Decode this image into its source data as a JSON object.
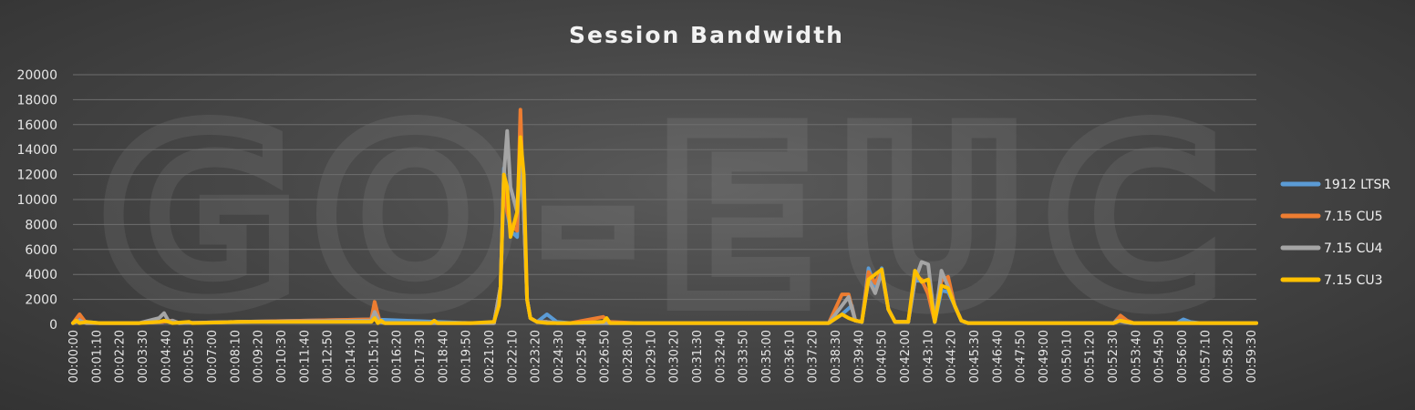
{
  "chart_data": {
    "type": "line",
    "title": "Session Bandwidth",
    "xlabel": "",
    "ylabel": "",
    "ylim": [
      0,
      20000
    ],
    "y_ticks": [
      0,
      2000,
      4000,
      6000,
      8000,
      10000,
      12000,
      14000,
      16000,
      18000,
      20000
    ],
    "x_tick_labels": [
      "00:00:00",
      "00:01:10",
      "00:02:20",
      "00:03:30",
      "00:04:40",
      "00:05:50",
      "00:07:00",
      "00:08:10",
      "00:09:20",
      "00:10:30",
      "00:11:40",
      "00:12:50",
      "00:14:00",
      "00:15:10",
      "00:16:20",
      "00:17:30",
      "00:18:40",
      "00:19:50",
      "00:21:00",
      "00:22:10",
      "00:23:20",
      "00:24:30",
      "00:25:40",
      "00:26:50",
      "00:28:00",
      "00:29:10",
      "00:30:20",
      "00:31:30",
      "00:32:40",
      "00:33:50",
      "00:35:00",
      "00:36:10",
      "00:37:20",
      "00:38:30",
      "00:39:40",
      "00:40:50",
      "00:42:00",
      "00:43:10",
      "00:44:20",
      "00:45:30",
      "00:46:40",
      "00:47:50",
      "00:49:00",
      "00:50:10",
      "00:51:20",
      "00:52:30",
      "00:53:40",
      "00:54:50",
      "00:56:00",
      "00:57:10",
      "00:58:20",
      "00:59:30"
    ],
    "x_range_seconds": [
      0,
      3570
    ],
    "grid": true,
    "legend_position": "right",
    "watermark": "GO-EUC",
    "series": [
      {
        "name": "1912 LTSR",
        "color": "#5b9bd5",
        "points": [
          [
            0,
            100
          ],
          [
            20,
            400
          ],
          [
            40,
            200
          ],
          [
            80,
            100
          ],
          [
            200,
            100
          ],
          [
            270,
            200
          ],
          [
            300,
            300
          ],
          [
            320,
            100
          ],
          [
            500,
            200
          ],
          [
            900,
            400
          ],
          [
            1200,
            100
          ],
          [
            1270,
            100
          ],
          [
            1290,
            3000
          ],
          [
            1300,
            12500
          ],
          [
            1310,
            9000
          ],
          [
            1320,
            7500
          ],
          [
            1340,
            7000
          ],
          [
            1350,
            14000
          ],
          [
            1360,
            9000
          ],
          [
            1370,
            2000
          ],
          [
            1380,
            500
          ],
          [
            1400,
            200
          ],
          [
            1430,
            800
          ],
          [
            1460,
            200
          ],
          [
            1500,
            100
          ],
          [
            1700,
            100
          ],
          [
            2280,
            100
          ],
          [
            2320,
            800
          ],
          [
            2350,
            1500
          ],
          [
            2360,
            300
          ],
          [
            2380,
            200
          ],
          [
            2400,
            4500
          ],
          [
            2420,
            3000
          ],
          [
            2440,
            4500
          ],
          [
            2460,
            1200
          ],
          [
            2480,
            200
          ],
          [
            2520,
            200
          ],
          [
            2540,
            3500
          ],
          [
            2560,
            3500
          ],
          [
            2580,
            2500
          ],
          [
            2600,
            200
          ],
          [
            2620,
            2700
          ],
          [
            2640,
            2600
          ],
          [
            2660,
            1500
          ],
          [
            2680,
            300
          ],
          [
            2700,
            100
          ],
          [
            3140,
            100
          ],
          [
            3150,
            400
          ],
          [
            3170,
            300
          ],
          [
            3190,
            100
          ],
          [
            3330,
            100
          ],
          [
            3350,
            400
          ],
          [
            3370,
            200
          ],
          [
            3400,
            100
          ],
          [
            3570,
            100
          ]
        ]
      },
      {
        "name": "7.15 CU5",
        "color": "#ed7d31",
        "points": [
          [
            0,
            100
          ],
          [
            20,
            800
          ],
          [
            40,
            100
          ],
          [
            80,
            100
          ],
          [
            200,
            100
          ],
          [
            270,
            200
          ],
          [
            300,
            300
          ],
          [
            320,
            100
          ],
          [
            500,
            200
          ],
          [
            900,
            400
          ],
          [
            910,
            1800
          ],
          [
            925,
            300
          ],
          [
            940,
            100
          ],
          [
            1200,
            100
          ],
          [
            1270,
            100
          ],
          [
            1290,
            3000
          ],
          [
            1300,
            12000
          ],
          [
            1310,
            9000
          ],
          [
            1320,
            8000
          ],
          [
            1340,
            7500
          ],
          [
            1350,
            17200
          ],
          [
            1360,
            9000
          ],
          [
            1370,
            2000
          ],
          [
            1380,
            500
          ],
          [
            1400,
            200
          ],
          [
            1430,
            200
          ],
          [
            1460,
            100
          ],
          [
            1500,
            100
          ],
          [
            1600,
            600
          ],
          [
            1620,
            200
          ],
          [
            1700,
            100
          ],
          [
            2280,
            100
          ],
          [
            2320,
            2400
          ],
          [
            2340,
            2400
          ],
          [
            2360,
            300
          ],
          [
            2380,
            200
          ],
          [
            2400,
            4200
          ],
          [
            2420,
            3300
          ],
          [
            2440,
            4300
          ],
          [
            2460,
            1200
          ],
          [
            2480,
            200
          ],
          [
            2520,
            200
          ],
          [
            2540,
            3800
          ],
          [
            2560,
            3600
          ],
          [
            2580,
            2400
          ],
          [
            2600,
            200
          ],
          [
            2620,
            3500
          ],
          [
            2640,
            3800
          ],
          [
            2660,
            1500
          ],
          [
            2680,
            300
          ],
          [
            2700,
            100
          ],
          [
            3140,
            100
          ],
          [
            3160,
            700
          ],
          [
            3180,
            300
          ],
          [
            3200,
            100
          ],
          [
            3570,
            100
          ]
        ]
      },
      {
        "name": "7.15 CU4",
        "color": "#a5a5a5",
        "points": [
          [
            0,
            100
          ],
          [
            20,
            300
          ],
          [
            40,
            100
          ],
          [
            80,
            100
          ],
          [
            200,
            100
          ],
          [
            260,
            500
          ],
          [
            275,
            900
          ],
          [
            290,
            200
          ],
          [
            300,
            300
          ],
          [
            320,
            100
          ],
          [
            500,
            200
          ],
          [
            900,
            300
          ],
          [
            910,
            1000
          ],
          [
            925,
            200
          ],
          [
            940,
            100
          ],
          [
            1200,
            100
          ],
          [
            1270,
            100
          ],
          [
            1290,
            3000
          ],
          [
            1300,
            12000
          ],
          [
            1310,
            15500
          ],
          [
            1320,
            11000
          ],
          [
            1340,
            9000
          ],
          [
            1350,
            13000
          ],
          [
            1360,
            9000
          ],
          [
            1370,
            2000
          ],
          [
            1380,
            500
          ],
          [
            1400,
            200
          ],
          [
            1430,
            200
          ],
          [
            1460,
            100
          ],
          [
            1500,
            100
          ],
          [
            1700,
            100
          ],
          [
            2280,
            100
          ],
          [
            2320,
            1500
          ],
          [
            2340,
            2200
          ],
          [
            2360,
            300
          ],
          [
            2380,
            200
          ],
          [
            2400,
            3600
          ],
          [
            2420,
            2500
          ],
          [
            2440,
            4200
          ],
          [
            2460,
            1200
          ],
          [
            2480,
            200
          ],
          [
            2520,
            200
          ],
          [
            2540,
            3500
          ],
          [
            2560,
            5000
          ],
          [
            2580,
            4800
          ],
          [
            2600,
            200
          ],
          [
            2620,
            4300
          ],
          [
            2640,
            3000
          ],
          [
            2660,
            1500
          ],
          [
            2680,
            300
          ],
          [
            2700,
            100
          ],
          [
            3140,
            100
          ],
          [
            3150,
            300
          ],
          [
            3170,
            200
          ],
          [
            3190,
            100
          ],
          [
            3570,
            100
          ]
        ]
      },
      {
        "name": "7.15 CU3",
        "color": "#ffc000",
        "points": [
          [
            0,
            100
          ],
          [
            10,
            300
          ],
          [
            20,
            100
          ],
          [
            40,
            200
          ],
          [
            80,
            100
          ],
          [
            200,
            100
          ],
          [
            260,
            200
          ],
          [
            275,
            300
          ],
          [
            290,
            200
          ],
          [
            300,
            100
          ],
          [
            350,
            200
          ],
          [
            360,
            100
          ],
          [
            500,
            200
          ],
          [
            900,
            200
          ],
          [
            910,
            500
          ],
          [
            920,
            100
          ],
          [
            930,
            300
          ],
          [
            940,
            100
          ],
          [
            1080,
            100
          ],
          [
            1090,
            300
          ],
          [
            1100,
            100
          ],
          [
            1200,
            100
          ],
          [
            1270,
            200
          ],
          [
            1285,
            1500
          ],
          [
            1290,
            3000
          ],
          [
            1300,
            12000
          ],
          [
            1310,
            11000
          ],
          [
            1320,
            7000
          ],
          [
            1340,
            9000
          ],
          [
            1350,
            15000
          ],
          [
            1360,
            12000
          ],
          [
            1370,
            2000
          ],
          [
            1380,
            500
          ],
          [
            1400,
            200
          ],
          [
            1430,
            100
          ],
          [
            1460,
            100
          ],
          [
            1500,
            100
          ],
          [
            1600,
            200
          ],
          [
            1610,
            500
          ],
          [
            1620,
            100
          ],
          [
            1700,
            100
          ],
          [
            2280,
            100
          ],
          [
            2320,
            800
          ],
          [
            2340,
            500
          ],
          [
            2360,
            300
          ],
          [
            2380,
            200
          ],
          [
            2400,
            3600
          ],
          [
            2420,
            4000
          ],
          [
            2440,
            4400
          ],
          [
            2460,
            1200
          ],
          [
            2480,
            200
          ],
          [
            2520,
            200
          ],
          [
            2540,
            4300
          ],
          [
            2560,
            3400
          ],
          [
            2580,
            3600
          ],
          [
            2600,
            200
          ],
          [
            2620,
            3100
          ],
          [
            2640,
            2900
          ],
          [
            2660,
            1500
          ],
          [
            2680,
            300
          ],
          [
            2700,
            100
          ],
          [
            3140,
            100
          ],
          [
            3160,
            300
          ],
          [
            3180,
            200
          ],
          [
            3200,
            100
          ],
          [
            3570,
            100
          ]
        ]
      }
    ]
  }
}
